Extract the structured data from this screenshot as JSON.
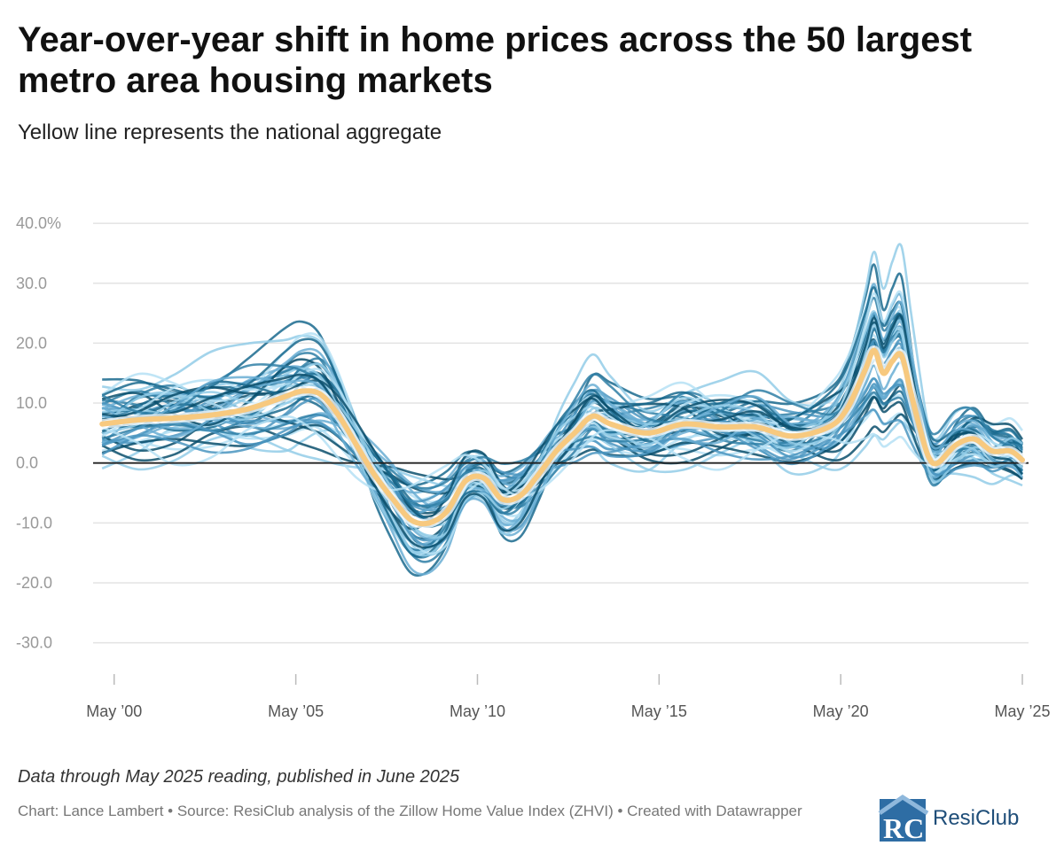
{
  "title": "Year-over-year shift in home prices across the 50 largest metro area housing markets",
  "subtitle": "Yellow line represents the national aggregate",
  "notes": "Data through May 2025 reading, published in June 2025",
  "source": "Chart: Lance Lambert • Source: ResiClub analysis of the Zillow Home Value Index (ZHVI)  • Created with Datawrapper",
  "brand": {
    "name": "ResiClub",
    "logo_letters": "RC"
  },
  "colors": {
    "national": "#f7c97f",
    "metro_palette": [
      "#0b4f6c",
      "#1a6a8e",
      "#2f7fa6",
      "#4a95bf",
      "#6aaed4",
      "#93cce8",
      "#b5e0f4"
    ],
    "zero_line": "#222222",
    "grid": "#e3e3e3"
  },
  "chart_data": {
    "type": "line",
    "title": "Year-over-year shift in home prices across the 50 largest metro area housing markets",
    "subtitle": "Yellow line represents the national aggregate",
    "xlabel": "",
    "ylabel": "",
    "x_range": [
      1999.75,
      2025.5
    ],
    "ylim": [
      -37,
      48
    ],
    "y_ticks": [
      40,
      30,
      20,
      10,
      0,
      -10,
      -20,
      -30
    ],
    "y_tick_labels": [
      "40.0%",
      "30.0",
      "20.0",
      "10.0",
      "0.0",
      "-10.0",
      "-20.0",
      "-30.0"
    ],
    "x_ticks": [
      2000.33,
      2005.33,
      2010.33,
      2015.33,
      2020.33,
      2025.33
    ],
    "x_tick_labels": [
      "May ’00",
      "May ’05",
      "May ’10",
      "May ’15",
      "May ’20",
      "May ’25"
    ],
    "grid": true,
    "national": {
      "x": [
        2000,
        2001,
        2002,
        2003,
        2004,
        2005,
        2005.5,
        2006,
        2006.5,
        2007,
        2007.5,
        2008,
        2008.5,
        2009,
        2009.5,
        2010,
        2010.5,
        2011,
        2011.5,
        2012,
        2012.5,
        2013,
        2013.5,
        2014,
        2015,
        2016,
        2017,
        2018,
        2019,
        2020,
        2020.5,
        2021,
        2021.25,
        2021.5,
        2021.75,
        2022,
        2022.25,
        2022.5,
        2022.75,
        2023,
        2023.5,
        2024,
        2024.5,
        2025,
        2025.33
      ],
      "y": [
        6.5,
        7.2,
        7.5,
        8,
        9,
        11,
        12,
        11.5,
        8,
        3,
        -2,
        -6,
        -9.5,
        -10,
        -8,
        -3,
        -2.5,
        -6,
        -5.5,
        -2,
        2,
        5,
        7.8,
        6.5,
        5,
        6.5,
        6,
        6,
        4.5,
        6,
        9,
        15.5,
        18.8,
        15,
        17,
        18,
        12,
        6,
        1,
        0,
        3,
        4,
        2,
        2,
        0.5
      ]
    },
    "metros": {
      "x": [
        2000,
        2001,
        2002,
        2003,
        2004,
        2005,
        2005.5,
        2006,
        2006.5,
        2007,
        2007.5,
        2008,
        2008.5,
        2009,
        2009.5,
        2010,
        2010.5,
        2011,
        2011.5,
        2012,
        2012.5,
        2013,
        2013.5,
        2014,
        2015,
        2016,
        2017,
        2018,
        2019,
        2020,
        2020.5,
        2021,
        2021.25,
        2021.5,
        2021.75,
        2022,
        2022.25,
        2022.5,
        2022.75,
        2023,
        2023.5,
        2024,
        2024.5,
        2025,
        2025.33
      ],
      "count": 50
    }
  }
}
